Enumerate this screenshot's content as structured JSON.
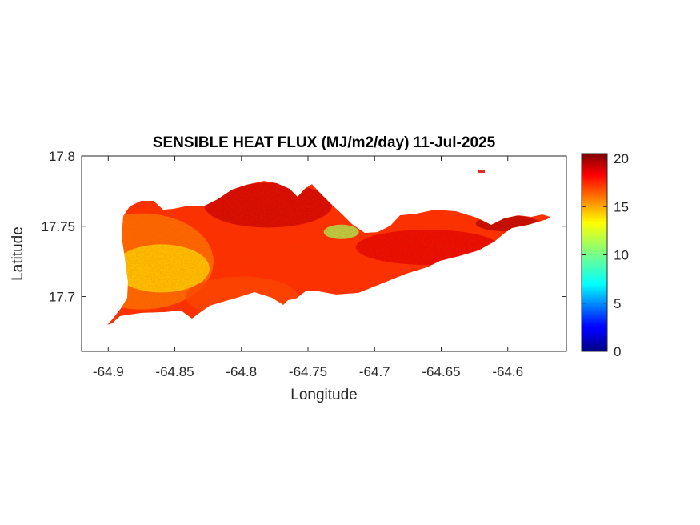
{
  "chart_data": {
    "type": "heatmap",
    "title": "SENSIBLE HEAT FLUX (MJ/m2/day) 11-Jul-2025",
    "xlabel": "Longitude",
    "ylabel": "Latitude",
    "xlim": [
      -64.92,
      -64.556
    ],
    "ylim": [
      17.661,
      17.8
    ],
    "xticks": [
      -64.9,
      -64.85,
      -64.8,
      -64.75,
      -64.7,
      -64.65,
      -64.6
    ],
    "xtick_labels": [
      "-64.9",
      "-64.85",
      "-64.8",
      "-64.75",
      "-64.7",
      "-64.65",
      "-64.6"
    ],
    "yticks": [
      17.7,
      17.75,
      17.8
    ],
    "ytick_labels": [
      "17.7",
      "17.75",
      "17.8"
    ],
    "colormap": "jet",
    "colorbar": {
      "range": [
        0,
        20.5
      ],
      "ticks": [
        0,
        5,
        10,
        15,
        20
      ],
      "tick_labels": [
        "0",
        "5",
        "10",
        "15",
        "20"
      ]
    },
    "grid": false,
    "region_values": [
      {
        "name": "west",
        "lon": -64.875,
        "lat": 17.725,
        "value": 15.5
      },
      {
        "name": "southwest-core",
        "lon": -64.86,
        "lat": 17.72,
        "value": 13.5
      },
      {
        "name": "central-north",
        "lon": -64.78,
        "lat": 17.765,
        "value": 19.0
      },
      {
        "name": "central-south",
        "lon": -64.8,
        "lat": 17.7,
        "value": 16.5
      },
      {
        "name": "green-patch",
        "lon": -64.725,
        "lat": 17.746,
        "value": 11.0
      },
      {
        "name": "east-arm",
        "lon": -64.66,
        "lat": 17.735,
        "value": 18.5
      },
      {
        "name": "east-tip",
        "lon": -64.6,
        "lat": 17.752,
        "value": 19.5
      }
    ]
  }
}
